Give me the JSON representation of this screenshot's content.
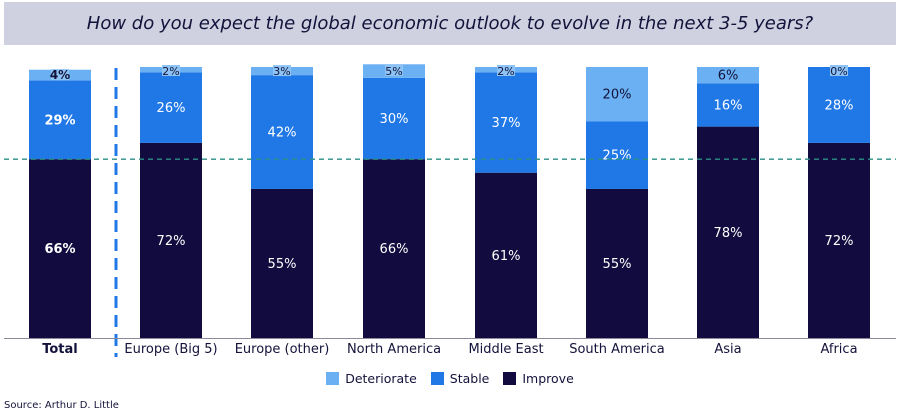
{
  "chart_data": {
    "type": "bar",
    "stacked": true,
    "title": "How do you expect the global economic outlook to evolve in the next 3-5 years?",
    "categories": [
      "Total",
      "Europe (Big 5)",
      "Europe (other)",
      "North America",
      "Middle East",
      "South America",
      "Asia",
      "Africa"
    ],
    "series": [
      {
        "name": "Improve",
        "values": [
          66,
          72,
          55,
          66,
          61,
          55,
          78,
          72
        ]
      },
      {
        "name": "Stable",
        "values": [
          29,
          26,
          42,
          30,
          37,
          25,
          16,
          28
        ]
      },
      {
        "name": "Deteriorate",
        "values": [
          4,
          2,
          3,
          5,
          2,
          20,
          6,
          0
        ]
      }
    ],
    "data_labels": [
      [
        "66%",
        "72%",
        "55%",
        "66%",
        "61%",
        "55%",
        "78%",
        "72%"
      ],
      [
        "29%",
        "26%",
        "42%",
        "30%",
        "37%",
        "25%",
        "16%",
        "28%"
      ],
      [
        "4%",
        "2%",
        "3%",
        "5%",
        "2%",
        "20%",
        "6%",
        "0%"
      ]
    ],
    "ylim": [
      0,
      100
    ],
    "reference_line": 66,
    "colors": {
      "Improve": "#120b3f",
      "Stable": "#1f78e6",
      "Deteriorate": "#6ab0f2"
    },
    "legend_order": [
      "Deteriorate",
      "Stable",
      "Improve"
    ],
    "legend_position": "bottom"
  },
  "source": "Source: Arthur D. Little"
}
